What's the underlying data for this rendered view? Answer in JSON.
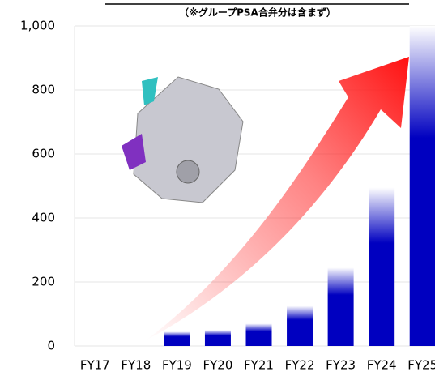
{
  "chart_data": {
    "type": "bar",
    "subtitle": "（※グループPSA合弁分は含まず）",
    "categories": [
      "FY17",
      "FY18",
      "FY19",
      "FY20",
      "FY21",
      "FY22",
      "FY23",
      "FY24",
      "FY25"
    ],
    "values": [
      0,
      0,
      45,
      50,
      70,
      125,
      245,
      495,
      1000
    ],
    "color": "#0000c0",
    "ylim": [
      0,
      1000
    ],
    "yticks": [
      0,
      200,
      400,
      600,
      800,
      {
        "value": 1000,
        "label": "1,000"
      }
    ],
    "grid": true
  }
}
